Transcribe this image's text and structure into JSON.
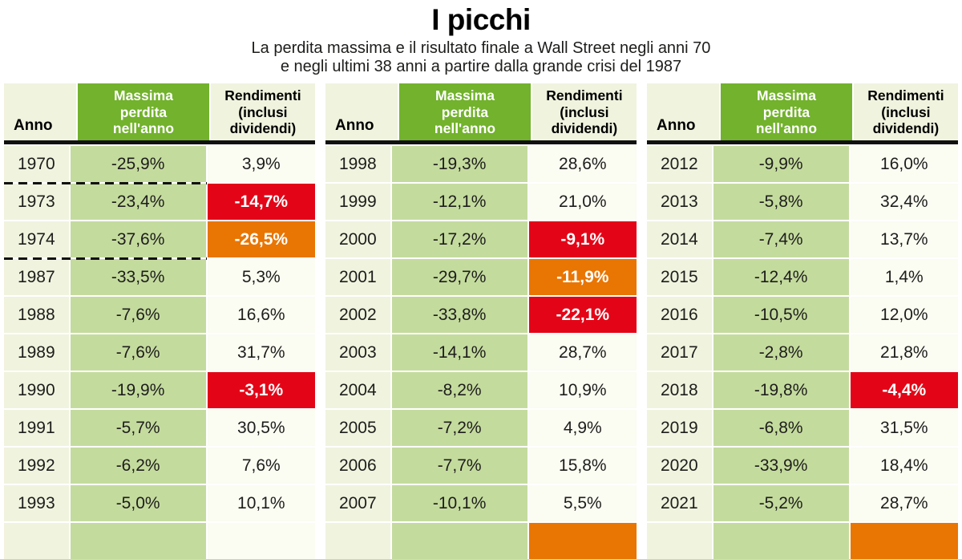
{
  "colors": {
    "green_header": "#72b22c",
    "light_green_cell": "#c4db9e",
    "cream_cell": "#f0f3de",
    "row_background": "#fbfcf2",
    "negative_red": "#e30517",
    "negative_orange": "#e97502",
    "divider_black": "#111111"
  },
  "chart_data": {
    "type": "table",
    "title": "I picchi",
    "subtitle_line1": "La perdita massima e il risultato finale a Wall Street negli anni 70",
    "subtitle_line2": "e negli ultimi 38 anni a partire dalla grande crisi del 1987",
    "columns": {
      "anno": "Anno",
      "perdita": "Massima\nperdita\nnell'anno",
      "rendimenti": "Rendimenti\n(inclusi\ndividendi)"
    },
    "tables": [
      {
        "rows": [
          {
            "anno": "1970",
            "perdita": "-25,9%",
            "rendimenti": "3,9%",
            "highlight": ""
          },
          {
            "anno": "1973",
            "perdita": "-23,4%",
            "rendimenti": "-14,7%",
            "highlight": "red",
            "dash_top": true
          },
          {
            "anno": "1974",
            "perdita": "-37,6%",
            "rendimenti": "-26,5%",
            "highlight": "orange",
            "dash_bottom": true
          },
          {
            "anno": "1987",
            "perdita": "-33,5%",
            "rendimenti": "5,3%",
            "highlight": ""
          },
          {
            "anno": "1988",
            "perdita": "-7,6%",
            "rendimenti": "16,6%",
            "highlight": ""
          },
          {
            "anno": "1989",
            "perdita": "-7,6%",
            "rendimenti": "31,7%",
            "highlight": ""
          },
          {
            "anno": "1990",
            "perdita": "-19,9%",
            "rendimenti": "-3,1%",
            "highlight": "red"
          },
          {
            "anno": "1991",
            "perdita": "-5,7%",
            "rendimenti": "30,5%",
            "highlight": ""
          },
          {
            "anno": "1992",
            "perdita": "-6,2%",
            "rendimenti": "7,6%",
            "highlight": ""
          },
          {
            "anno": "1993",
            "perdita": "-5,0%",
            "rendimenti": "10,1%",
            "highlight": ""
          },
          {
            "anno": "",
            "perdita": "",
            "rendimenti": "",
            "highlight": "",
            "partial": true
          }
        ]
      },
      {
        "rows": [
          {
            "anno": "1998",
            "perdita": "-19,3%",
            "rendimenti": "28,6%",
            "highlight": ""
          },
          {
            "anno": "1999",
            "perdita": "-12,1%",
            "rendimenti": "21,0%",
            "highlight": ""
          },
          {
            "anno": "2000",
            "perdita": "-17,2%",
            "rendimenti": "-9,1%",
            "highlight": "red"
          },
          {
            "anno": "2001",
            "perdita": "-29,7%",
            "rendimenti": "-11,9%",
            "highlight": "orange"
          },
          {
            "anno": "2002",
            "perdita": "-33,8%",
            "rendimenti": "-22,1%",
            "highlight": "red"
          },
          {
            "anno": "2003",
            "perdita": "-14,1%",
            "rendimenti": "28,7%",
            "highlight": ""
          },
          {
            "anno": "2004",
            "perdita": "-8,2%",
            "rendimenti": "10,9%",
            "highlight": ""
          },
          {
            "anno": "2005",
            "perdita": "-7,2%",
            "rendimenti": "4,9%",
            "highlight": ""
          },
          {
            "anno": "2006",
            "perdita": "-7,7%",
            "rendimenti": "15,8%",
            "highlight": ""
          },
          {
            "anno": "2007",
            "perdita": "-10,1%",
            "rendimenti": "5,5%",
            "highlight": ""
          },
          {
            "anno": "",
            "perdita": "",
            "rendimenti": "",
            "highlight": "orange",
            "partial": true
          }
        ]
      },
      {
        "rows": [
          {
            "anno": "2012",
            "perdita": "-9,9%",
            "rendimenti": "16,0%",
            "highlight": ""
          },
          {
            "anno": "2013",
            "perdita": "-5,8%",
            "rendimenti": "32,4%",
            "highlight": ""
          },
          {
            "anno": "2014",
            "perdita": "-7,4%",
            "rendimenti": "13,7%",
            "highlight": ""
          },
          {
            "anno": "2015",
            "perdita": "-12,4%",
            "rendimenti": "1,4%",
            "highlight": ""
          },
          {
            "anno": "2016",
            "perdita": "-10,5%",
            "rendimenti": "12,0%",
            "highlight": ""
          },
          {
            "anno": "2017",
            "perdita": "-2,8%",
            "rendimenti": "21,8%",
            "highlight": ""
          },
          {
            "anno": "2018",
            "perdita": "-19,8%",
            "rendimenti": "-4,4%",
            "highlight": "red"
          },
          {
            "anno": "2019",
            "perdita": "-6,8%",
            "rendimenti": "31,5%",
            "highlight": ""
          },
          {
            "anno": "2020",
            "perdita": "-33,9%",
            "rendimenti": "18,4%",
            "highlight": ""
          },
          {
            "anno": "2021",
            "perdita": "-5,2%",
            "rendimenti": "28,7%",
            "highlight": ""
          },
          {
            "anno": "",
            "perdita": "",
            "rendimenti": "",
            "highlight": "orange",
            "partial": true
          }
        ]
      }
    ]
  }
}
